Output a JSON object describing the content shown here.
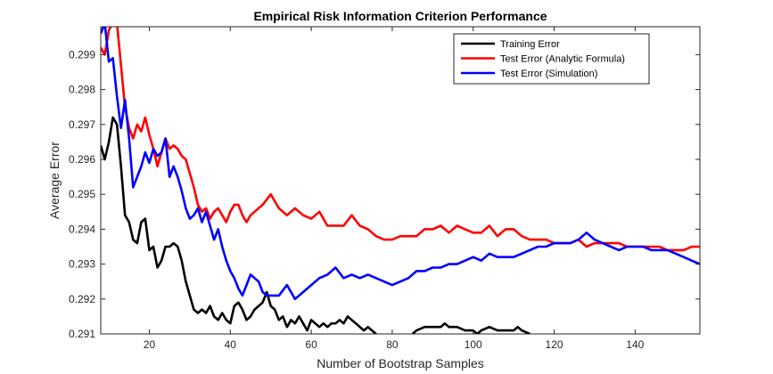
{
  "chart_data": {
    "type": "line",
    "title": "Empirical Risk Information Criterion Performance",
    "xlabel": "Number of Bootstrap Samples",
    "ylabel": "Average Error",
    "xlim": [
      8,
      156
    ],
    "ylim": [
      0.291,
      0.2998
    ],
    "xticks": [
      20,
      40,
      60,
      80,
      100,
      120,
      140
    ],
    "yticks": [
      0.291,
      0.292,
      0.293,
      0.294,
      0.295,
      0.296,
      0.297,
      0.298,
      0.299
    ],
    "legend_position": "top-right",
    "grid": false,
    "series": [
      {
        "name": "Training Error",
        "color": "#000000",
        "x": [
          8,
          9,
          10,
          11,
          12,
          13,
          14,
          15,
          16,
          17,
          18,
          19,
          20,
          21,
          22,
          23,
          24,
          25,
          26,
          27,
          28,
          29,
          30,
          31,
          32,
          33,
          34,
          35,
          36,
          37,
          38,
          39,
          40,
          41,
          42,
          43,
          44,
          45,
          46,
          47,
          48,
          49,
          50,
          51,
          52,
          53,
          54,
          55,
          56,
          57,
          58,
          59,
          60,
          61,
          62,
          63,
          64,
          65,
          66,
          67,
          68,
          69,
          70,
          71,
          72,
          73,
          74,
          75,
          76,
          null,
          85,
          86,
          88,
          90,
          92,
          93,
          94,
          96,
          98,
          100,
          101,
          102,
          104,
          106,
          108,
          110,
          111,
          112,
          114
        ],
        "values": [
          0.2964,
          0.296,
          0.2965,
          0.2972,
          0.297,
          0.2958,
          0.2944,
          0.2942,
          0.2937,
          0.2936,
          0.2942,
          0.2943,
          0.2934,
          0.2935,
          0.2929,
          0.2931,
          0.2935,
          0.2935,
          0.2936,
          0.2935,
          0.2931,
          0.2925,
          0.2921,
          0.2917,
          0.2916,
          0.2917,
          0.2916,
          0.2918,
          0.2915,
          0.2914,
          0.2916,
          0.2914,
          0.2913,
          0.2918,
          0.2919,
          0.2917,
          0.2914,
          0.2915,
          0.2917,
          0.2918,
          0.2919,
          0.2922,
          0.2918,
          0.2917,
          0.2914,
          0.2915,
          0.2912,
          0.2914,
          0.2913,
          0.2915,
          0.2913,
          0.2911,
          0.2914,
          0.2913,
          0.2912,
          0.2913,
          0.2912,
          0.2913,
          0.2913,
          0.2914,
          0.2913,
          0.2915,
          0.2914,
          0.2913,
          0.2912,
          0.2911,
          0.2912,
          0.2911,
          0.291,
          null,
          0.291,
          0.2911,
          0.2912,
          0.2912,
          0.2912,
          0.2913,
          0.2912,
          0.2912,
          0.2911,
          0.2911,
          0.291,
          0.2911,
          0.2912,
          0.2911,
          0.2911,
          0.2911,
          0.2912,
          0.2911,
          0.291
        ]
      },
      {
        "name": "Test Error (Analytic Formula)",
        "color": "#ff0000",
        "x": [
          8,
          9,
          10,
          11,
          12,
          13,
          14,
          15,
          16,
          17,
          18,
          19,
          20,
          21,
          22,
          23,
          24,
          25,
          26,
          27,
          28,
          29,
          30,
          31,
          32,
          33,
          34,
          35,
          36,
          37,
          38,
          39,
          40,
          41,
          42,
          43,
          44,
          45,
          46,
          48,
          50,
          51,
          52,
          54,
          56,
          58,
          60,
          62,
          64,
          66,
          68,
          70,
          72,
          74,
          76,
          78,
          80,
          82,
          84,
          86,
          88,
          90,
          92,
          94,
          96,
          98,
          100,
          102,
          104,
          106,
          108,
          110,
          112,
          114,
          116,
          118,
          120,
          122,
          124,
          126,
          128,
          130,
          132,
          134,
          136,
          138,
          140,
          142,
          144,
          146,
          148,
          150,
          152,
          154,
          156
        ],
        "values": [
          0.2992,
          0.299,
          0.2997,
          0.2999,
          0.2999,
          0.2987,
          0.2975,
          0.2969,
          0.2966,
          0.297,
          0.2968,
          0.2972,
          0.2967,
          0.2963,
          0.2958,
          0.2962,
          0.2966,
          0.2963,
          0.2964,
          0.2963,
          0.2961,
          0.296,
          0.2956,
          0.2952,
          0.2947,
          0.2945,
          0.2946,
          0.2943,
          0.2945,
          0.2946,
          0.2944,
          0.2942,
          0.2945,
          0.2947,
          0.2947,
          0.2944,
          0.2942,
          0.2944,
          0.2945,
          0.2947,
          0.295,
          0.2948,
          0.2946,
          0.2944,
          0.2946,
          0.2944,
          0.2943,
          0.2945,
          0.2941,
          0.2941,
          0.2941,
          0.2944,
          0.2941,
          0.294,
          0.2938,
          0.2937,
          0.2937,
          0.2938,
          0.2938,
          0.2938,
          0.294,
          0.294,
          0.2941,
          0.2939,
          0.2941,
          0.294,
          0.2939,
          0.2939,
          0.2941,
          0.2938,
          0.294,
          0.294,
          0.2938,
          0.2937,
          0.2937,
          0.2937,
          0.2936,
          0.2936,
          0.2936,
          0.2937,
          0.2935,
          0.2936,
          0.2936,
          0.2936,
          0.2936,
          0.2935,
          0.2935,
          0.2935,
          0.2935,
          0.2935,
          0.2934,
          0.2934,
          0.2934,
          0.2935,
          0.2935
        ]
      },
      {
        "name": "Test Error (Simulation)",
        "color": "#0000ff",
        "x": [
          8,
          9,
          10,
          11,
          12,
          13,
          14,
          15,
          16,
          17,
          18,
          19,
          20,
          21,
          22,
          23,
          24,
          25,
          26,
          27,
          28,
          29,
          30,
          31,
          32,
          33,
          34,
          35,
          36,
          37,
          38,
          39,
          40,
          41,
          42,
          43,
          44,
          45,
          46,
          47,
          48,
          49,
          50,
          52,
          54,
          56,
          58,
          60,
          62,
          64,
          66,
          68,
          70,
          72,
          74,
          76,
          78,
          80,
          82,
          84,
          86,
          88,
          90,
          92,
          94,
          96,
          98,
          100,
          102,
          104,
          106,
          108,
          110,
          112,
          114,
          116,
          118,
          120,
          122,
          124,
          126,
          128,
          130,
          132,
          134,
          136,
          138,
          140,
          142,
          144,
          146,
          148,
          150,
          152,
          154,
          156
        ],
        "values": [
          0.2996,
          0.2999,
          0.2988,
          0.2989,
          0.2978,
          0.2969,
          0.2977,
          0.2966,
          0.2952,
          0.2955,
          0.2958,
          0.2962,
          0.2959,
          0.2963,
          0.2961,
          0.2962,
          0.2966,
          0.2955,
          0.2958,
          0.2955,
          0.2951,
          0.2946,
          0.2943,
          0.2944,
          0.2946,
          0.2942,
          0.2945,
          0.2941,
          0.2937,
          0.294,
          0.2935,
          0.2931,
          0.2928,
          0.2926,
          0.2923,
          0.2921,
          0.2924,
          0.2927,
          0.2926,
          0.2925,
          0.2922,
          0.2921,
          0.2921,
          0.2921,
          0.2924,
          0.292,
          0.2922,
          0.2924,
          0.2926,
          0.2927,
          0.2929,
          0.2926,
          0.2927,
          0.2926,
          0.2927,
          0.2926,
          0.2925,
          0.2924,
          0.2925,
          0.2926,
          0.2928,
          0.2928,
          0.2929,
          0.2929,
          0.293,
          0.293,
          0.2931,
          0.2932,
          0.2931,
          0.2933,
          0.2932,
          0.2932,
          0.2932,
          0.2933,
          0.2934,
          0.2935,
          0.2935,
          0.2936,
          0.2936,
          0.2936,
          0.2937,
          0.2939,
          0.2937,
          0.2936,
          0.2935,
          0.2934,
          0.2935,
          0.2935,
          0.2935,
          0.2934,
          0.2934,
          0.2934,
          0.2933,
          0.2932,
          0.2931,
          0.293
        ]
      }
    ]
  }
}
